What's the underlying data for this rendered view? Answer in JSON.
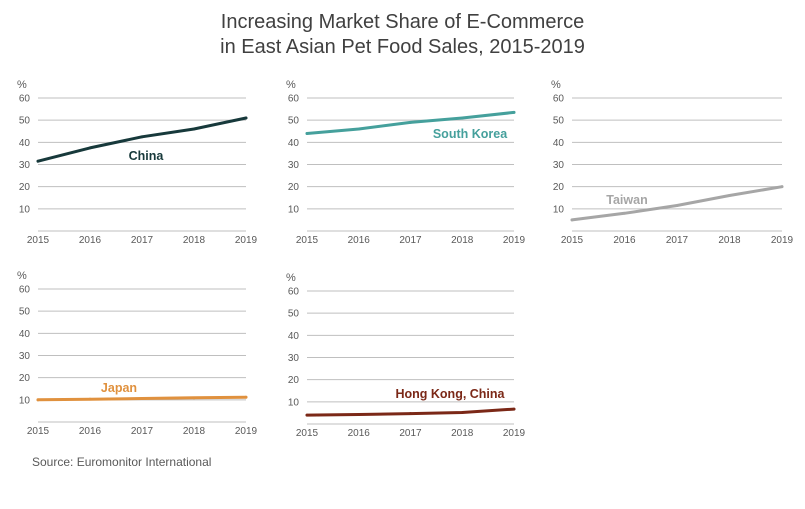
{
  "title_line1": "Increasing Market Share of E-Commerce",
  "title_line2": "in East Asian Pet Food Sales, 2015-2019",
  "source": "Source: Euromonitor International",
  "chart_data": [
    {
      "type": "line",
      "series_name": "China",
      "color": "#17393b",
      "x": [
        "2015",
        "2016",
        "2017",
        "2018",
        "2019"
      ],
      "values": [
        31.5,
        37.5,
        42.5,
        46,
        51
      ],
      "yticks": [
        10,
        20,
        30,
        40,
        50,
        60
      ],
      "ylim": [
        0,
        60
      ],
      "ylabel": "%",
      "grid": true
    },
    {
      "type": "line",
      "series_name": "South Korea",
      "color": "#45a09c",
      "x": [
        "2015",
        "2016",
        "2017",
        "2018",
        "2019"
      ],
      "values": [
        44,
        46,
        49,
        51,
        53.5
      ],
      "yticks": [
        10,
        20,
        30,
        40,
        50,
        60
      ],
      "ylim": [
        0,
        60
      ],
      "ylabel": "%",
      "grid": true
    },
    {
      "type": "line",
      "series_name": "Taiwan",
      "color": "#a6a6a6",
      "x": [
        "2015",
        "2016",
        "2017",
        "2018",
        "2019"
      ],
      "values": [
        5,
        8,
        11.5,
        16,
        20
      ],
      "yticks": [
        10,
        20,
        30,
        40,
        50,
        60
      ],
      "ylim": [
        0,
        60
      ],
      "ylabel": "%",
      "grid": true
    },
    {
      "type": "line",
      "series_name": "Japan",
      "color": "#e0913e",
      "x": [
        "2015",
        "2016",
        "2017",
        "2018",
        "2019"
      ],
      "values": [
        10,
        10.3,
        10.6,
        10.9,
        11.2
      ],
      "yticks": [
        10,
        20,
        30,
        40,
        50,
        60
      ],
      "ylim": [
        0,
        60
      ],
      "ylabel": "%",
      "grid": true
    },
    {
      "type": "line",
      "series_name": "Hong Kong, China",
      "color": "#7b2817",
      "x": [
        "2015",
        "2016",
        "2017",
        "2018",
        "2019"
      ],
      "values": [
        4,
        4.3,
        4.7,
        5.2,
        6.7
      ],
      "yticks": [
        10,
        20,
        30,
        40,
        50,
        60
      ],
      "ylim": [
        0,
        60
      ],
      "ylabel": "%",
      "grid": true
    }
  ]
}
